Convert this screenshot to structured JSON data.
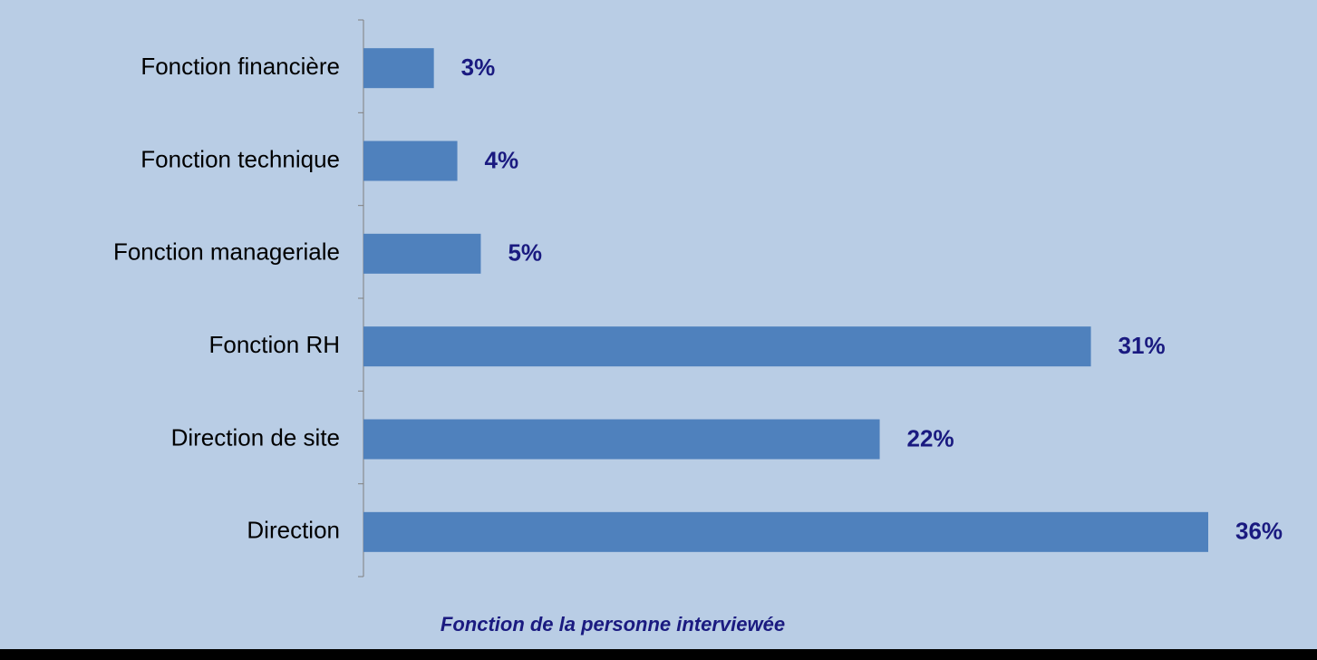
{
  "chart_data": {
    "type": "bar",
    "orientation": "horizontal",
    "title": "Fonction de la personne interviewée",
    "categories": [
      "Fonction financière",
      "Fonction technique",
      "Fonction manageriale",
      "Fonction RH",
      "Direction de site",
      "Direction"
    ],
    "values": [
      3,
      4,
      5,
      31,
      22,
      36
    ],
    "value_labels": [
      "3%",
      "4%",
      "5%",
      "31%",
      "22%",
      "36%"
    ],
    "color": "#4f81bd"
  }
}
